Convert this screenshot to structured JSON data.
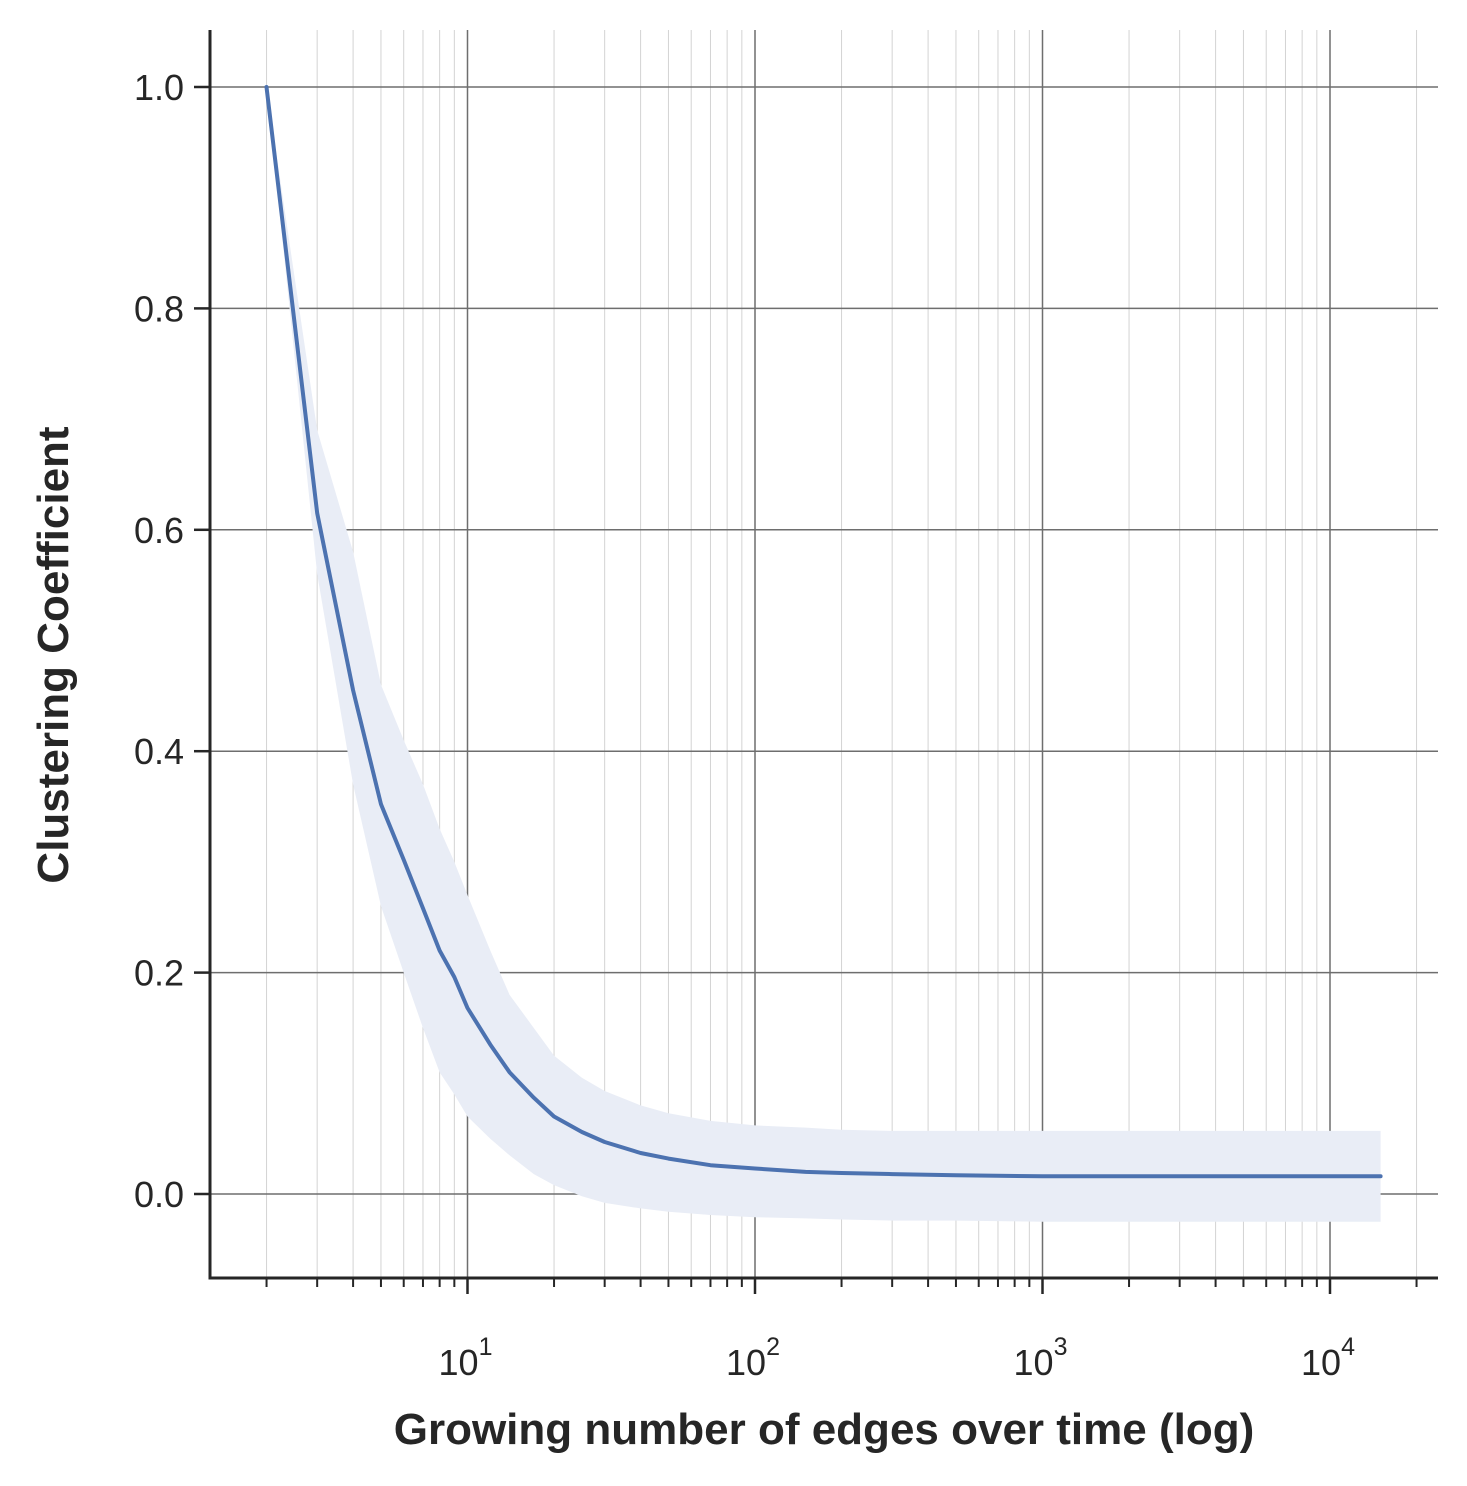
{
  "chart_data": {
    "type": "line",
    "xlabel": "Growing number of edges over time (log)",
    "ylabel": "Clustering Coefficient",
    "x_scale": "log",
    "xlim": [
      1.22,
      23000
    ],
    "ylim": [
      -0.077,
      1.05
    ],
    "grid": true,
    "x_ticks": [
      {
        "base": "10",
        "exp": "1",
        "value": 10
      },
      {
        "base": "10",
        "exp": "2",
        "value": 100
      },
      {
        "base": "10",
        "exp": "3",
        "value": 1000
      },
      {
        "base": "10",
        "exp": "4",
        "value": 10000
      }
    ],
    "y_ticks": [
      "0.0",
      "0.2",
      "0.4",
      "0.6",
      "0.8",
      "1.0"
    ],
    "y_tick_values": [
      0.0,
      0.2,
      0.4,
      0.6,
      0.8,
      1.0
    ],
    "series": [
      {
        "color": "#4c72b0",
        "band_color": "#e9edf6",
        "x": [
          2,
          3,
          4,
          5,
          6,
          7,
          8,
          9,
          10,
          12,
          14,
          17,
          20,
          25,
          30,
          40,
          50,
          70,
          100,
          150,
          200,
          300,
          500,
          1000,
          2000,
          5000,
          10000,
          15000
        ],
        "y": [
          1.0,
          0.615,
          0.455,
          0.352,
          0.302,
          0.258,
          0.22,
          0.196,
          0.168,
          0.135,
          0.11,
          0.087,
          0.07,
          0.056,
          0.047,
          0.037,
          0.032,
          0.026,
          0.023,
          0.02,
          0.019,
          0.018,
          0.017,
          0.016,
          0.016,
          0.016,
          0.016,
          0.016
        ],
        "lower": [
          1.0,
          0.56,
          0.37,
          0.26,
          0.2,
          0.15,
          0.11,
          0.09,
          0.07,
          0.05,
          0.035,
          0.018,
          0.008,
          -0.002,
          -0.008,
          -0.013,
          -0.016,
          -0.019,
          -0.021,
          -0.022,
          -0.023,
          -0.024,
          -0.024,
          -0.025,
          -0.025,
          -0.025,
          -0.025,
          -0.025
        ],
        "upper": [
          1.0,
          0.69,
          0.58,
          0.46,
          0.41,
          0.37,
          0.33,
          0.3,
          0.27,
          0.22,
          0.18,
          0.15,
          0.125,
          0.105,
          0.093,
          0.08,
          0.073,
          0.066,
          0.062,
          0.06,
          0.058,
          0.057,
          0.057,
          0.057,
          0.057,
          0.057,
          0.057,
          0.057
        ]
      }
    ]
  }
}
